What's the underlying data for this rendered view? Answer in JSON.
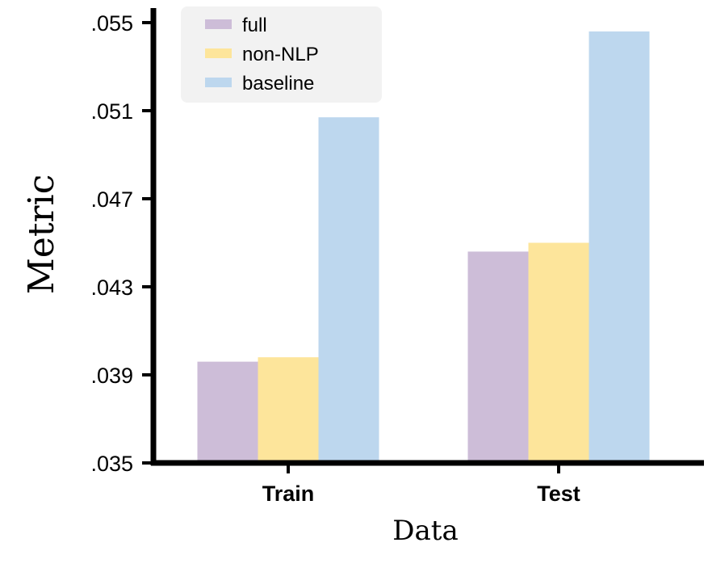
{
  "chart_data": {
    "type": "bar",
    "title": "",
    "xlabel": "Data",
    "ylabel": "Metric",
    "categories": [
      "Train",
      "Test"
    ],
    "series": [
      {
        "name": "full",
        "color": "#cdbdd8",
        "values": [
          0.0396,
          0.0446
        ]
      },
      {
        "name": "non-NLP",
        "color": "#fde59b",
        "values": [
          0.0398,
          0.045
        ]
      },
      {
        "name": "baseline",
        "color": "#bdd7ee",
        "values": [
          0.0507,
          0.0546
        ]
      }
    ],
    "ylim": [
      0.035,
      0.056
    ],
    "yticks": [
      0.035,
      0.039,
      0.043,
      0.047,
      0.051,
      0.055
    ],
    "ytick_labels": [
      ".035",
      ".039",
      ".043",
      ".047",
      ".051",
      ".055"
    ],
    "grid": false,
    "legend_position": "top-left"
  }
}
